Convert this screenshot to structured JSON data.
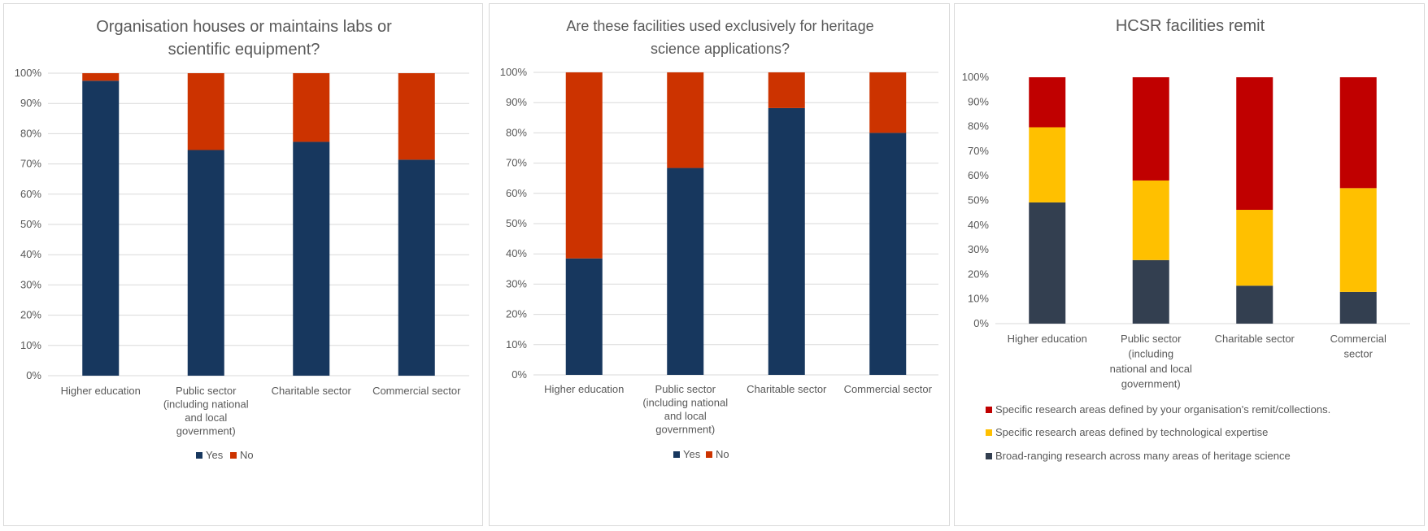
{
  "chart_data": [
    {
      "type": "bar",
      "stacked": true,
      "title": "Organisation houses or maintains labs or scientific equipment?",
      "title_lines": [
        "Organisation houses or maintains labs or",
        "scientific equipment?"
      ],
      "categories": [
        "Higher education",
        "Public sector (including national and local government)",
        "Charitable sector",
        "Commercial sector"
      ],
      "category_lines": [
        [
          "Higher education"
        ],
        [
          "Public sector",
          "(including national",
          "and local",
          "government)"
        ],
        [
          "Charitable sector"
        ],
        [
          "Commercial sector"
        ]
      ],
      "series": [
        {
          "name": "Yes",
          "color": "#17375e",
          "values": [
            97.5,
            74.6,
            77.3,
            71.4
          ]
        },
        {
          "name": "No",
          "color": "#cc3300",
          "values": [
            2.5,
            25.4,
            22.7,
            28.6
          ]
        }
      ],
      "ylim": [
        0,
        100
      ],
      "yticks": [
        "0%",
        "10%",
        "20%",
        "30%",
        "40%",
        "50%",
        "60%",
        "70%",
        "80%",
        "90%",
        "100%"
      ],
      "grid": true,
      "legend": "bottom"
    },
    {
      "type": "bar",
      "stacked": true,
      "title": "Are these facilities used exclusively for heritage science applications?",
      "title_lines": [
        "Are these facilities used exclusively for heritage",
        "science applications?"
      ],
      "categories": [
        "Higher education",
        "Public sector (including national and local government)",
        "Charitable sector",
        "Commercial sector"
      ],
      "category_lines": [
        [
          "Higher education"
        ],
        [
          "Public sector",
          "(including national",
          "and local",
          "government)"
        ],
        [
          "Charitable sector"
        ],
        [
          "Commercial sector"
        ]
      ],
      "series": [
        {
          "name": "Yes",
          "color": "#17375e",
          "values": [
            38.5,
            68.4,
            88.2,
            80.0
          ]
        },
        {
          "name": "No",
          "color": "#cc3300",
          "values": [
            61.5,
            31.6,
            11.8,
            20.0
          ]
        }
      ],
      "ylim": [
        0,
        100
      ],
      "yticks": [
        "0%",
        "10%",
        "20%",
        "30%",
        "40%",
        "50%",
        "60%",
        "70%",
        "80%",
        "90%",
        "100%"
      ],
      "grid": true,
      "legend": "bottom"
    },
    {
      "type": "bar",
      "stacked": true,
      "title": "HCSR facilities remit",
      "title_lines": [
        "HCSR facilities remit"
      ],
      "categories": [
        "Higher education",
        "Public sector (including national and local government)",
        "Charitable sector",
        "Commercial sector"
      ],
      "category_lines": [
        [
          "Higher education"
        ],
        [
          "Public sector",
          "(including",
          "national and local",
          "government)"
        ],
        [
          "Charitable sector"
        ],
        [
          "Commercial",
          "sector"
        ]
      ],
      "series": [
        {
          "name": "Broad-ranging research across many areas of heritage science",
          "color": "#333f50",
          "values": [
            49.2,
            25.8,
            15.4,
            12.9
          ]
        },
        {
          "name": "Specific research areas defined by technological expertise",
          "color": "#ffc000",
          "values": [
            30.5,
            32.3,
            30.8,
            42.1
          ]
        },
        {
          "name": "Specific research areas defined by your organisation's remit/collections.",
          "color": "#c00000",
          "values": [
            20.3,
            41.9,
            53.8,
            45.0
          ]
        }
      ],
      "ylim": [
        0,
        100
      ],
      "yticks": [
        "0%",
        "10%",
        "20%",
        "30%",
        "40%",
        "50%",
        "60%",
        "70%",
        "80%",
        "90%",
        "100%"
      ],
      "grid": false,
      "legend": "bottom"
    }
  ]
}
